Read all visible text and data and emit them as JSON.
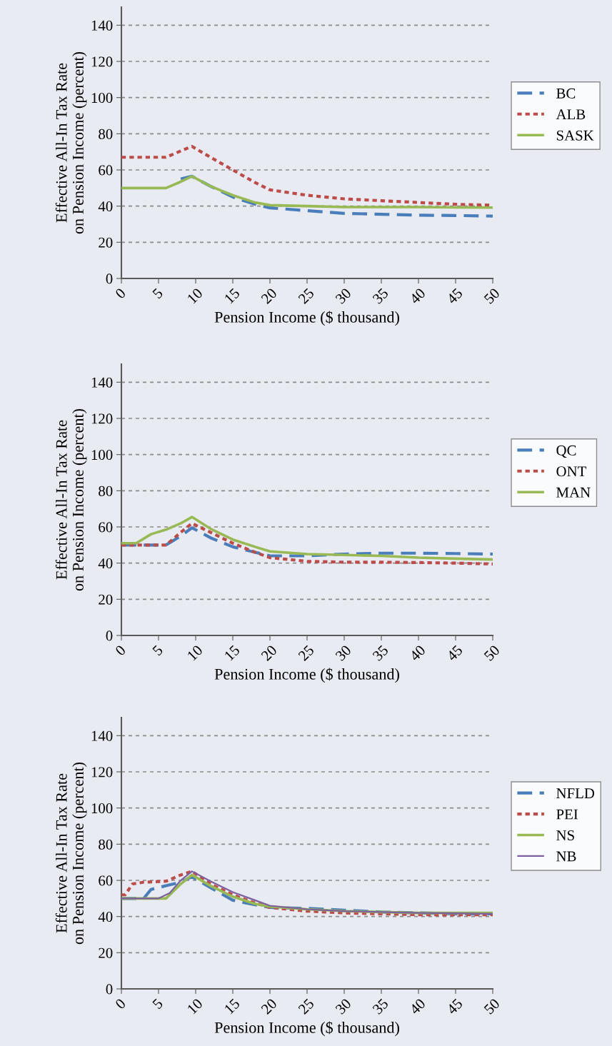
{
  "chart_data": [
    {
      "type": "line",
      "xlabel": "Pension Income ($ thousand)",
      "ylabel": "Effective All-In Tax Rate\non Pension Income (percent)",
      "xlim": [
        0,
        50
      ],
      "xticks": [
        0,
        5,
        10,
        15,
        20,
        25,
        30,
        35,
        40,
        45,
        50
      ],
      "ylim": [
        0,
        150
      ],
      "yticks": [
        0,
        20,
        40,
        60,
        80,
        100,
        120,
        140
      ],
      "grid": "y",
      "legend": "right",
      "x": [
        0,
        2,
        4,
        6,
        8,
        9.5,
        12,
        15,
        18,
        20,
        25,
        30,
        35,
        40,
        45,
        50
      ],
      "series": [
        {
          "name": "BC",
          "color": "#4a7ebb",
          "line_style": "dashed",
          "values": [
            null,
            null,
            null,
            null,
            55,
            56.5,
            51,
            45,
            41,
            39,
            37.5,
            36,
            35.5,
            35,
            34.8,
            34.5
          ]
        },
        {
          "name": "ALB",
          "color": "#be4b48",
          "line_style": "dotted",
          "values": [
            67,
            67,
            67,
            67,
            70.5,
            73,
            67,
            60,
            53,
            49,
            46,
            44,
            43,
            42,
            41,
            40.5
          ]
        },
        {
          "name": "SASK",
          "color": "#98b954",
          "line_style": "solid",
          "values": [
            50,
            50,
            50,
            50,
            53.5,
            56.5,
            51,
            46,
            42,
            40.5,
            40,
            39.5,
            39.5,
            39.5,
            39.3,
            39.2
          ]
        }
      ]
    },
    {
      "type": "line",
      "xlabel": "Pension Income ($ thousand)",
      "ylabel": "Effective All-In Tax Rate\non Pension Income (percent)",
      "xlim": [
        0,
        50
      ],
      "xticks": [
        0,
        5,
        10,
        15,
        20,
        25,
        30,
        35,
        40,
        45,
        50
      ],
      "ylim": [
        0,
        150
      ],
      "yticks": [
        0,
        20,
        40,
        60,
        80,
        100,
        120,
        140
      ],
      "grid": "y",
      "legend": "right",
      "x": [
        0,
        2,
        4,
        6,
        8,
        9.5,
        12,
        15,
        18,
        20,
        25,
        30,
        35,
        40,
        45,
        50
      ],
      "series": [
        {
          "name": "QC",
          "color": "#4a7ebb",
          "line_style": "dashed",
          "values": [
            50,
            50,
            50,
            50,
            55,
            59.5,
            54,
            49,
            46,
            44,
            44,
            45,
            45.5,
            45.5,
            45.3,
            45
          ]
        },
        {
          "name": "ONT",
          "color": "#be4b48",
          "line_style": "dotted",
          "values": [
            50,
            50,
            50,
            50,
            57,
            62,
            57,
            51,
            46,
            43,
            41,
            40.5,
            40.5,
            40.3,
            40,
            39.5
          ]
        },
        {
          "name": "MAN",
          "color": "#98b954",
          "line_style": "solid",
          "values": [
            51,
            51,
            56,
            58.5,
            62,
            65.5,
            59,
            53,
            49,
            46.5,
            45,
            44.5,
            44,
            43,
            42.5,
            42
          ]
        }
      ]
    },
    {
      "type": "line",
      "xlabel": "Pension Income ($ thousand)",
      "ylabel": "Effective All-In Tax Rate\non Pension Income (percent)",
      "xlim": [
        0,
        50
      ],
      "xticks": [
        0,
        5,
        10,
        15,
        20,
        25,
        30,
        35,
        40,
        45,
        50
      ],
      "ylim": [
        0,
        150
      ],
      "yticks": [
        0,
        20,
        40,
        60,
        80,
        100,
        120,
        140
      ],
      "grid": "y",
      "legend": "right",
      "series": [
        {
          "name": "NFLD",
          "color": "#4a7ebb",
          "line_style": "dashed",
          "x": [
            0,
            2,
            3,
            4,
            6,
            8,
            9.5,
            12,
            15,
            18,
            20,
            25,
            30,
            35,
            40,
            45,
            50
          ],
          "values": [
            50,
            50,
            50,
            55,
            57,
            59,
            62,
            56,
            49,
            46.5,
            45,
            44.5,
            43.5,
            42.5,
            42,
            41.5,
            41.5
          ]
        },
        {
          "name": "PEI",
          "color": "#be4b48",
          "line_style": "dotted",
          "x": [
            0,
            0.5,
            1.5,
            3,
            6,
            8,
            9.5,
            12,
            15,
            18,
            20,
            25,
            30,
            35,
            40,
            45,
            50
          ],
          "values": [
            52,
            52,
            58,
            59,
            59.5,
            63,
            65,
            58,
            52,
            47.5,
            45,
            43,
            42,
            41.5,
            41,
            41,
            41
          ]
        },
        {
          "name": "NS",
          "color": "#98b954",
          "line_style": "solid",
          "x": [
            0,
            2,
            4,
            6,
            8,
            9.5,
            12,
            15,
            18,
            20,
            25,
            30,
            35,
            40,
            45,
            50
          ],
          "values": [
            50,
            50,
            50,
            50,
            58,
            63,
            57,
            51,
            47,
            45.5,
            44,
            43,
            42.5,
            42,
            42,
            42
          ]
        },
        {
          "name": "NB",
          "color": "#7d60a0",
          "line_style": "solid",
          "x": [
            0,
            2,
            4,
            5,
            6.5,
            8,
            9.5,
            12,
            15,
            18,
            20,
            25,
            30,
            35,
            40,
            45,
            50
          ],
          "values": [
            50,
            50,
            50,
            50,
            53,
            60,
            65,
            59.5,
            53.5,
            49,
            46,
            44,
            43,
            42.5,
            42,
            41.8,
            41.5
          ]
        }
      ]
    }
  ]
}
